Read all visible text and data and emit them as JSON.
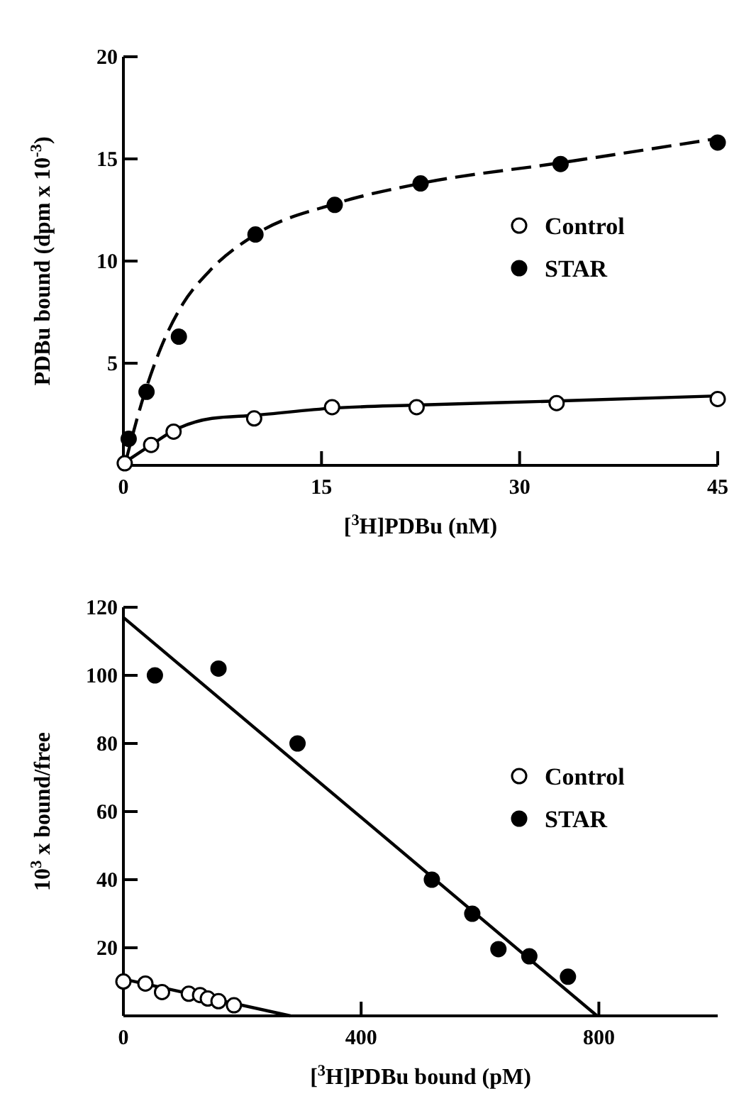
{
  "chart_data": [
    {
      "type": "scatter",
      "xlabel": "[$^{3}$H]PDBu (nM)",
      "ylabel": "PDBu bound (dpm x 10$^{-3}$)",
      "xlim": [
        0,
        45
      ],
      "xticks": [
        0,
        15,
        30,
        45
      ],
      "ylim": [
        0,
        20
      ],
      "yticks": [
        5,
        10,
        15,
        20
      ],
      "legend": "right",
      "grid": false,
      "series": [
        {
          "type": "line",
          "color": "#000000",
          "line_style": "solid",
          "x": [
            0,
            2.1,
            3.8,
            6.7,
            9.9,
            15.8,
            22.2,
            32.8,
            45
          ],
          "values": [
            0.1,
            1.0,
            1.7,
            2.3,
            2.45,
            2.8,
            2.95,
            3.15,
            3.4
          ]
        },
        {
          "type": "line",
          "color": "#000000",
          "line_style": "dashed",
          "x": [
            0.1,
            1.4,
            2.8,
            4.5,
            6.5,
            10,
            16,
            22.5,
            33,
            45
          ],
          "values": [
            0,
            3.1,
            5.7,
            7.9,
            9.5,
            11.3,
            12.8,
            13.8,
            14.8,
            16.0
          ]
        },
        {
          "name": "Control",
          "marker": "circle",
          "color": "#ffffff",
          "x": [
            0.1,
            2.1,
            3.8,
            9.9,
            15.8,
            22.2,
            32.8,
            45
          ],
          "values": [
            0.1,
            1.0,
            1.65,
            2.3,
            2.85,
            2.85,
            3.05,
            3.25
          ]
        },
        {
          "name": "STAR",
          "marker": "circle",
          "color": "#000000",
          "x": [
            0.4,
            1.75,
            4.2,
            10.0,
            16.0,
            22.5,
            33.1,
            45
          ],
          "values": [
            1.3,
            3.6,
            6.3,
            11.3,
            12.75,
            13.8,
            14.75,
            15.8
          ]
        }
      ]
    },
    {
      "type": "scatter",
      "xlabel": "[$^{3}$H]PDBu bound (pM)",
      "ylabel": "10$^{3}$ x bound/free",
      "xlim": [
        0,
        1000
      ],
      "xticks": [
        0,
        400,
        800
      ],
      "ylim": [
        0,
        120
      ],
      "yticks": [
        20,
        40,
        60,
        80,
        100,
        120
      ],
      "legend": "right",
      "grid": false,
      "series": [
        {
          "type": "line",
          "color": "#000000",
          "line_style": "solid",
          "x": [
            0,
            281
          ],
          "values": [
            10.8,
            0
          ]
        },
        {
          "type": "line",
          "color": "#000000",
          "line_style": "solid",
          "x": [
            0,
            797
          ],
          "values": [
            117,
            0
          ]
        },
        {
          "name": "Control",
          "marker": "circle",
          "color": "#ffffff",
          "x": [
            0,
            37,
            65,
            110,
            129,
            142,
            160,
            186
          ],
          "values": [
            10.1,
            9.5,
            7.0,
            6.5,
            6.1,
            5.1,
            4.3,
            3.1
          ]
        },
        {
          "name": "STAR",
          "marker": "circle",
          "color": "#000000",
          "x": [
            53,
            160,
            293,
            519,
            587,
            631,
            683,
            748
          ],
          "values": [
            100,
            102,
            80,
            40,
            30,
            19.6,
            17.5,
            11.5
          ]
        }
      ]
    }
  ]
}
